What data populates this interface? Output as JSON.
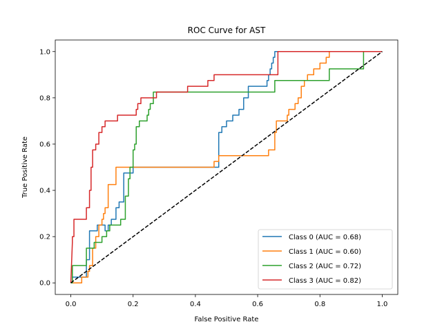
{
  "chart_data": {
    "type": "line",
    "title": "ROC Curve for AST",
    "xlabel": "False Positive Rate",
    "ylabel": "True Positive Rate",
    "xlim": [
      -0.05,
      1.05
    ],
    "ylim": [
      -0.05,
      1.05
    ],
    "xticks": [
      "0.0",
      "0.2",
      "0.4",
      "0.6",
      "0.8",
      "1.0"
    ],
    "yticks": [
      "0.0",
      "0.2",
      "0.4",
      "0.6",
      "0.8",
      "1.0"
    ],
    "grid": false,
    "legend_position": "lower right",
    "series": [
      {
        "name": "Class 0 (AUC = 0.68)",
        "color": "#1f77b4",
        "x": [
          0,
          0.005,
          0.005,
          0.05,
          0.05,
          0.06,
          0.06,
          0.085,
          0.085,
          0.11,
          0.11,
          0.12,
          0.12,
          0.13,
          0.13,
          0.145,
          0.145,
          0.155,
          0.155,
          0.17,
          0.17,
          0.2,
          0.2,
          0.21,
          0.21,
          0.475,
          0.475,
          0.485,
          0.485,
          0.5,
          0.5,
          0.52,
          0.52,
          0.54,
          0.54,
          0.555,
          0.555,
          0.57,
          0.57,
          0.63,
          0.63,
          0.635,
          0.635,
          0.64,
          0.64,
          0.645,
          0.645,
          0.65,
          0.65,
          0.655,
          0.655,
          1.0
        ],
        "y": [
          0,
          0,
          0.025,
          0.025,
          0.1,
          0.1,
          0.225,
          0.225,
          0.25,
          0.25,
          0.225,
          0.225,
          0.25,
          0.25,
          0.275,
          0.275,
          0.325,
          0.325,
          0.35,
          0.35,
          0.475,
          0.475,
          0.5,
          0.5,
          0.5,
          0.5,
          0.65,
          0.65,
          0.675,
          0.675,
          0.7,
          0.7,
          0.725,
          0.725,
          0.75,
          0.75,
          0.8,
          0.8,
          0.85,
          0.85,
          0.875,
          0.875,
          0.9,
          0.9,
          0.925,
          0.925,
          0.95,
          0.95,
          0.975,
          0.975,
          1.0,
          1.0
        ]
      },
      {
        "name": "Class 1 (AUC = 0.60)",
        "color": "#ff7f0e",
        "x": [
          0,
          0.035,
          0.035,
          0.055,
          0.055,
          0.06,
          0.06,
          0.07,
          0.07,
          0.08,
          0.08,
          0.09,
          0.09,
          0.1,
          0.1,
          0.105,
          0.105,
          0.11,
          0.11,
          0.12,
          0.12,
          0.145,
          0.145,
          0.15,
          0.15,
          0.46,
          0.46,
          0.475,
          0.475,
          0.635,
          0.635,
          0.655,
          0.655,
          0.66,
          0.66,
          0.695,
          0.695,
          0.7,
          0.7,
          0.72,
          0.72,
          0.73,
          0.73,
          0.74,
          0.74,
          0.75,
          0.75,
          0.76,
          0.76,
          0.78,
          0.78,
          0.8,
          0.8,
          0.82,
          0.82,
          0.83,
          0.83,
          1.0
        ],
        "y": [
          0,
          0,
          0.025,
          0.025,
          0.05,
          0.05,
          0.075,
          0.075,
          0.15,
          0.15,
          0.2,
          0.2,
          0.25,
          0.25,
          0.275,
          0.275,
          0.3,
          0.3,
          0.325,
          0.325,
          0.425,
          0.425,
          0.5,
          0.5,
          0.5,
          0.5,
          0.525,
          0.525,
          0.55,
          0.55,
          0.575,
          0.575,
          0.65,
          0.65,
          0.7,
          0.7,
          0.725,
          0.725,
          0.75,
          0.75,
          0.775,
          0.775,
          0.8,
          0.8,
          0.85,
          0.85,
          0.875,
          0.875,
          0.9,
          0.9,
          0.925,
          0.925,
          0.95,
          0.95,
          0.975,
          0.975,
          1.0,
          1.0
        ]
      },
      {
        "name": "Class 2 (AUC = 0.72)",
        "color": "#2ca02c",
        "x": [
          0,
          0.005,
          0.005,
          0.05,
          0.05,
          0.075,
          0.075,
          0.1,
          0.1,
          0.115,
          0.115,
          0.125,
          0.125,
          0.16,
          0.16,
          0.175,
          0.175,
          0.185,
          0.185,
          0.19,
          0.19,
          0.2,
          0.2,
          0.205,
          0.205,
          0.21,
          0.21,
          0.22,
          0.22,
          0.245,
          0.245,
          0.25,
          0.25,
          0.255,
          0.255,
          0.265,
          0.265,
          0.655,
          0.655,
          0.83,
          0.83,
          0.94,
          0.94,
          1.0
        ],
        "y": [
          0,
          0,
          0.075,
          0.075,
          0.15,
          0.15,
          0.175,
          0.175,
          0.2,
          0.2,
          0.225,
          0.225,
          0.25,
          0.25,
          0.275,
          0.275,
          0.375,
          0.375,
          0.45,
          0.45,
          0.5,
          0.5,
          0.575,
          0.575,
          0.6,
          0.6,
          0.675,
          0.675,
          0.7,
          0.7,
          0.725,
          0.725,
          0.75,
          0.75,
          0.775,
          0.775,
          0.825,
          0.825,
          0.875,
          0.875,
          0.925,
          0.925,
          1.0,
          1.0
        ]
      },
      {
        "name": "Class 3 (AUC = 0.82)",
        "color": "#d62728",
        "x": [
          0,
          0.005,
          0.005,
          0.01,
          0.01,
          0.05,
          0.05,
          0.06,
          0.06,
          0.065,
          0.065,
          0.07,
          0.07,
          0.08,
          0.08,
          0.09,
          0.09,
          0.1,
          0.1,
          0.11,
          0.11,
          0.15,
          0.15,
          0.21,
          0.21,
          0.215,
          0.215,
          0.225,
          0.225,
          0.275,
          0.275,
          0.375,
          0.375,
          0.44,
          0.44,
          0.46,
          0.46,
          0.665,
          0.665,
          0.74,
          0.74,
          1.0
        ],
        "y": [
          0,
          0.175,
          0.2,
          0.2,
          0.275,
          0.275,
          0.325,
          0.325,
          0.4,
          0.4,
          0.5,
          0.5,
          0.575,
          0.575,
          0.6,
          0.6,
          0.65,
          0.65,
          0.675,
          0.675,
          0.7,
          0.7,
          0.725,
          0.725,
          0.75,
          0.75,
          0.775,
          0.775,
          0.8,
          0.8,
          0.825,
          0.825,
          0.85,
          0.85,
          0.875,
          0.875,
          0.9,
          0.9,
          1.0,
          1.0,
          1.0,
          1.0
        ]
      }
    ],
    "reference_line": {
      "x": [
        0,
        1
      ],
      "y": [
        0,
        1
      ],
      "style": "dashed",
      "color": "#000000"
    }
  }
}
